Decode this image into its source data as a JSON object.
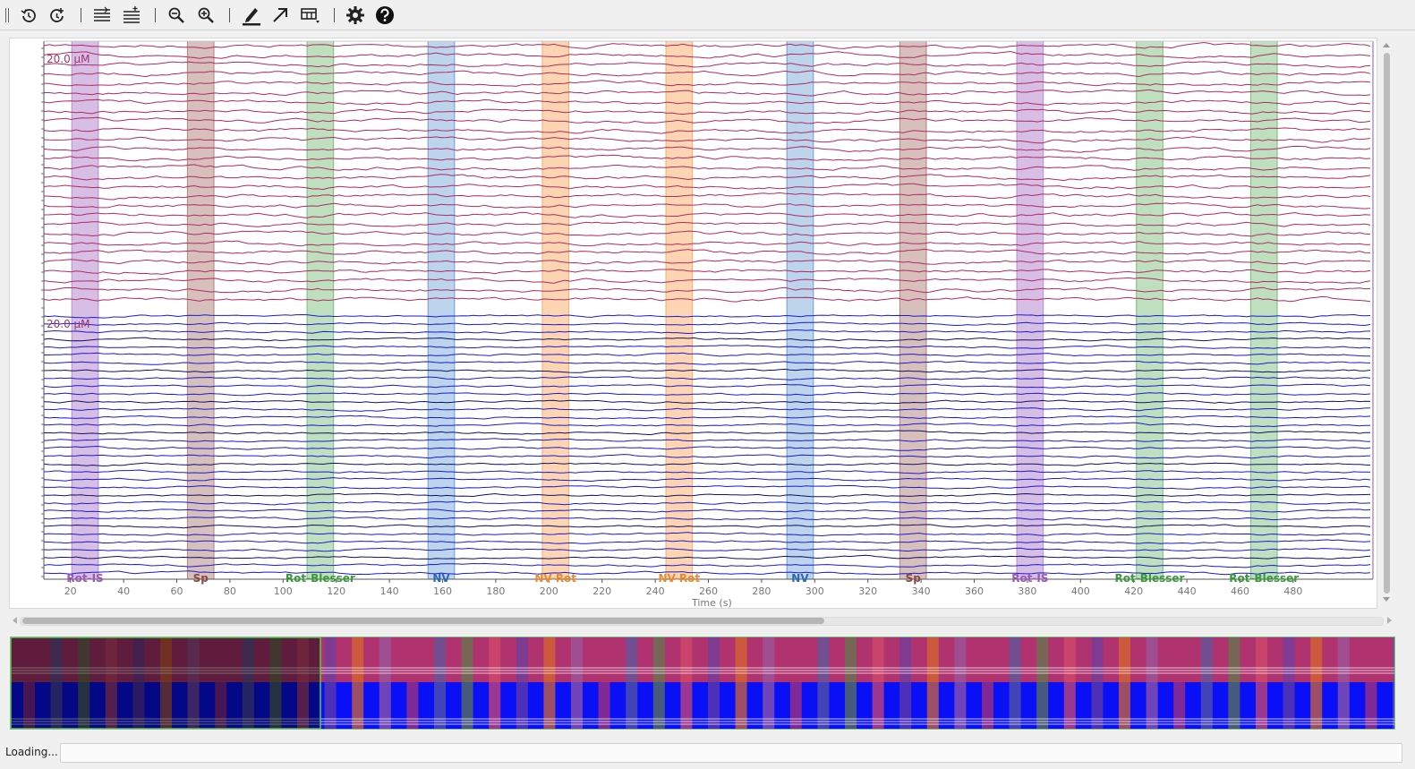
{
  "toolbar": {
    "buttons": [
      {
        "name": "rewind-button",
        "icon": "rotate-ccw-icon"
      },
      {
        "name": "refresh-button",
        "icon": "rotate-cw-plus-icon"
      },
      {
        "name": "collapse-channels-button",
        "icon": "lines-decrease-icon"
      },
      {
        "name": "expand-channels-button",
        "icon": "lines-increase-icon"
      },
      {
        "name": "zoom-out-button",
        "icon": "zoom-out-icon"
      },
      {
        "name": "zoom-in-button",
        "icon": "zoom-in-icon"
      },
      {
        "name": "annotate-button",
        "icon": "pencil-icon"
      },
      {
        "name": "arrow-tool-button",
        "icon": "arrow-icon"
      },
      {
        "name": "layout-dropdown-button",
        "icon": "grid-dropdown-icon"
      },
      {
        "name": "settings-button",
        "icon": "gear-icon"
      },
      {
        "name": "help-button",
        "icon": "help-icon"
      }
    ]
  },
  "plot": {
    "top_group_scale_label": "20.0 µM",
    "bottom_group_scale_label": "20.0 µM",
    "x_axis_label": "Time (s)",
    "x_ticks": [
      20,
      40,
      60,
      80,
      100,
      120,
      140,
      160,
      180,
      200,
      220,
      240,
      260,
      280,
      300,
      320,
      340,
      360,
      380,
      400,
      420,
      440,
      460,
      480
    ],
    "x_range": [
      10,
      510
    ],
    "colors": {
      "top_traces": "#b02a63",
      "bottom_traces": "#1a1ad6",
      "bottom_traces_alt": "#10106e"
    },
    "events": [
      {
        "label": "Rot-IS",
        "start": 20.5,
        "end": 30.5,
        "color": "#c9a8dc",
        "text_color": "#9b59b6"
      },
      {
        "label": "Sp",
        "start": 64,
        "end": 74,
        "color": "#c9a9a6",
        "text_color": "#8b4a44"
      },
      {
        "label": "Rot-Blesser",
        "start": 109,
        "end": 119,
        "color": "#a9d6a9",
        "text_color": "#3a9a3a"
      },
      {
        "label": "NV",
        "start": 154.5,
        "end": 164.5,
        "color": "#a6c6e6",
        "text_color": "#2a6ab0"
      },
      {
        "label": "NV-Rot",
        "start": 197.5,
        "end": 207.5,
        "color": "#fcc79a",
        "text_color": "#e88a30"
      },
      {
        "label": "NV-Rot",
        "start": 244,
        "end": 254,
        "color": "#fcc79a",
        "text_color": "#e88a30"
      },
      {
        "label": "NV",
        "start": 289.5,
        "end": 299.5,
        "color": "#a6c6e6",
        "text_color": "#2a6ab0"
      },
      {
        "label": "Sp",
        "start": 332,
        "end": 342,
        "color": "#c9a9a6",
        "text_color": "#8b4a44"
      },
      {
        "label": "Rot-IS",
        "start": 376,
        "end": 386,
        "color": "#c9a8dc",
        "text_color": "#9b59b6"
      },
      {
        "label": "Rot-Blesser",
        "start": 421,
        "end": 431,
        "color": "#a9d6a9",
        "text_color": "#3a9a3a"
      },
      {
        "label": "Rot-Blesser",
        "start": 464,
        "end": 474,
        "color": "#a9d6a9",
        "text_color": "#3a9a3a"
      }
    ]
  },
  "overview": {
    "stripe_colors": [
      "#b0336f",
      "#6a3fa0",
      "#5a5aa0",
      "#d86a2a",
      "#5f7a4a",
      "#9a5aa0",
      "#d44a6a"
    ]
  },
  "status": {
    "text": "Loading...",
    "progress": 0
  }
}
